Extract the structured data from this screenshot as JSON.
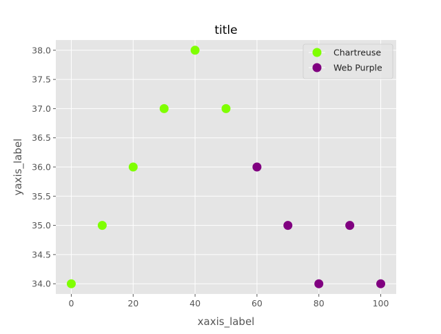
{
  "chart_data": {
    "type": "scatter",
    "title": "title",
    "xlabel": "xaxis_label",
    "ylabel": "yaxis_label",
    "xlim": [
      -5,
      105
    ],
    "ylim": [
      33.825,
      38.175
    ],
    "xticks": [
      0,
      20,
      40,
      60,
      80,
      100
    ],
    "xtick_labels": [
      "0",
      "20",
      "40",
      "60",
      "80",
      "100"
    ],
    "yticks": [
      34.0,
      34.5,
      35.0,
      35.5,
      36.0,
      36.5,
      37.0,
      37.5,
      38.0
    ],
    "ytick_labels": [
      "34.0",
      "34.5",
      "35.0",
      "35.5",
      "36.0",
      "36.5",
      "37.0",
      "37.5",
      "38.0"
    ],
    "grid": true,
    "legend_position": "top-right",
    "series": [
      {
        "name": "Chartreuse",
        "color": "#7fff00",
        "x": [
          0,
          10,
          20,
          30,
          40,
          50
        ],
        "y": [
          34,
          35,
          36,
          37,
          38,
          37
        ]
      },
      {
        "name": "Web Purple",
        "color": "#800080",
        "x": [
          60,
          70,
          80,
          90,
          100
        ],
        "y": [
          36,
          35,
          34,
          35,
          34
        ]
      }
    ]
  }
}
